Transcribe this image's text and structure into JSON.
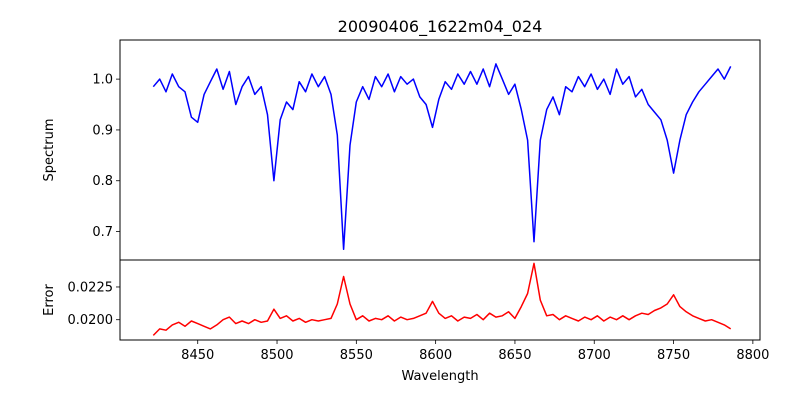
{
  "chart_data": [
    {
      "type": "line",
      "title": "20090406_1622m04_024",
      "xlabel": "",
      "ylabel": "Spectrum",
      "xlim": [
        8401,
        8804.5
      ],
      "ylim": [
        0.644,
        1.077
      ],
      "yticks": [
        0.7,
        0.8,
        0.9,
        1.0
      ],
      "ytick_labels": [
        "0.7",
        "0.8",
        "0.9",
        "1.0"
      ],
      "color": "#0000ff",
      "x_start": 8422,
      "x_step": 4,
      "values": [
        0.985,
        1.0,
        0.975,
        1.01,
        0.985,
        0.975,
        0.925,
        0.915,
        0.97,
        0.995,
        1.02,
        0.98,
        1.015,
        0.95,
        0.985,
        1.005,
        0.97,
        0.985,
        0.93,
        0.8,
        0.92,
        0.955,
        0.94,
        0.995,
        0.975,
        1.01,
        0.985,
        1.005,
        0.97,
        0.89,
        0.665,
        0.87,
        0.955,
        0.985,
        0.96,
        1.005,
        0.985,
        1.01,
        0.975,
        1.005,
        0.99,
        1.0,
        0.965,
        0.95,
        0.905,
        0.96,
        0.995,
        0.98,
        1.01,
        0.99,
        1.015,
        0.99,
        1.02,
        0.985,
        1.03,
        1.0,
        0.97,
        0.99,
        0.94,
        0.88,
        0.68,
        0.88,
        0.94,
        0.965,
        0.93,
        0.985,
        0.975,
        1.005,
        0.985,
        1.01,
        0.98,
        1.0,
        0.97,
        1.02,
        0.99,
        1.005,
        0.965,
        0.98,
        0.95,
        0.935,
        0.92,
        0.88,
        0.815,
        0.88,
        0.93,
        0.955,
        0.975,
        0.99,
        1.005,
        1.02,
        1.0,
        1.025
      ]
    },
    {
      "type": "line",
      "xlabel": "Wavelength",
      "ylabel": "Error",
      "xlim": [
        8401,
        8804.5
      ],
      "ylim": [
        0.01845,
        0.02456
      ],
      "xticks": [
        8450,
        8500,
        8550,
        8600,
        8650,
        8700,
        8750,
        8800
      ],
      "xtick_labels": [
        "8450",
        "8500",
        "8550",
        "8600",
        "8650",
        "8700",
        "8750",
        "8800"
      ],
      "yticks": [
        0.02,
        0.0225
      ],
      "ytick_labels": [
        "0.0200",
        "0.0225"
      ],
      "color": "#ff0000",
      "x_start": 8422,
      "x_step": 4,
      "values": [
        0.0188,
        0.0193,
        0.0192,
        0.0196,
        0.0198,
        0.0195,
        0.0199,
        0.0197,
        0.0195,
        0.0193,
        0.0196,
        0.02,
        0.0202,
        0.0197,
        0.0199,
        0.0197,
        0.02,
        0.0198,
        0.0199,
        0.0208,
        0.0201,
        0.0203,
        0.0199,
        0.0201,
        0.0198,
        0.02,
        0.0199,
        0.02,
        0.0201,
        0.0212,
        0.0233,
        0.0212,
        0.02,
        0.0203,
        0.0199,
        0.0201,
        0.02,
        0.0203,
        0.0199,
        0.0202,
        0.02,
        0.0201,
        0.0203,
        0.0205,
        0.0214,
        0.0205,
        0.0201,
        0.0203,
        0.0199,
        0.0202,
        0.0201,
        0.0204,
        0.02,
        0.0205,
        0.0202,
        0.0203,
        0.0206,
        0.0201,
        0.021,
        0.022,
        0.0243,
        0.0215,
        0.0203,
        0.0204,
        0.02,
        0.0203,
        0.0201,
        0.0199,
        0.0202,
        0.02,
        0.0203,
        0.0199,
        0.0202,
        0.02,
        0.0203,
        0.02,
        0.0203,
        0.0205,
        0.0204,
        0.0207,
        0.0209,
        0.0212,
        0.0219,
        0.021,
        0.0206,
        0.0203,
        0.0201,
        0.0199,
        0.02,
        0.0198,
        0.0196,
        0.0193
      ]
    }
  ]
}
